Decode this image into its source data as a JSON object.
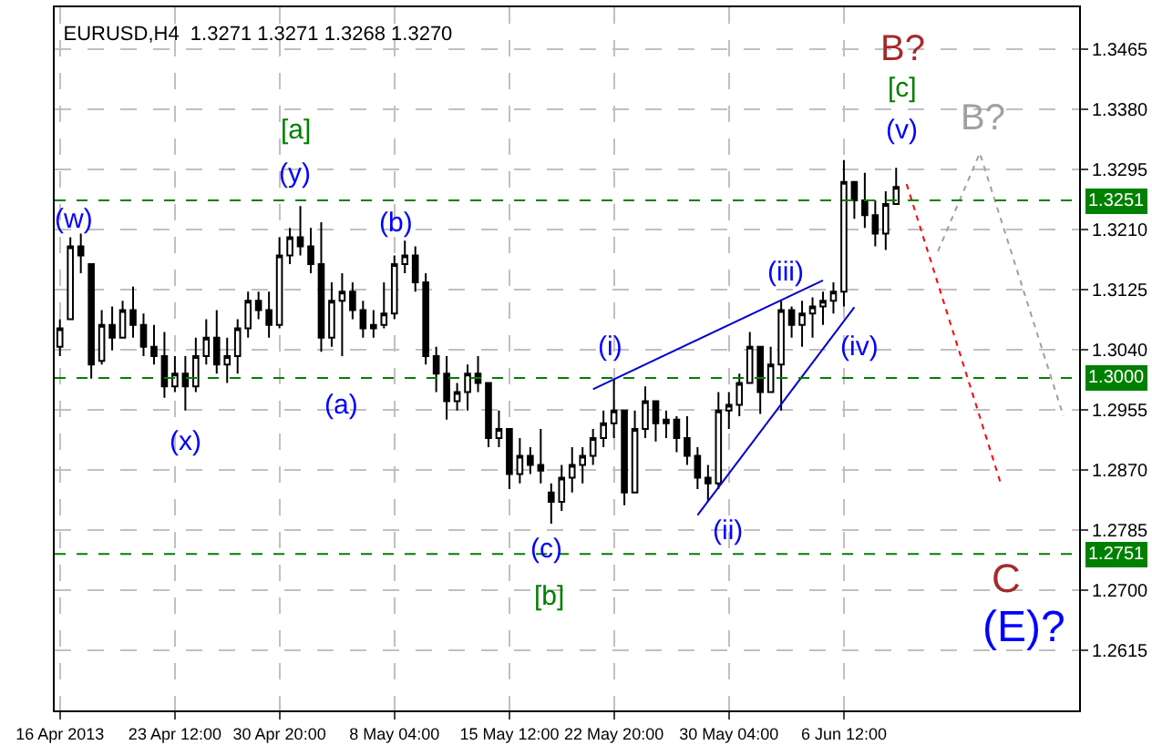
{
  "chart_data": {
    "type": "candlestick",
    "title": "EURUSD,H4  1.3271 1.3271 1.3268 1.3270",
    "color": "#000000",
    "categories": [
      "16 Apr 2013",
      null,
      null,
      null,
      null,
      null,
      null,
      null,
      null,
      null,
      null,
      "23 Apr 12:00",
      null,
      null,
      null,
      null,
      null,
      null,
      null,
      null,
      null,
      "30 Apr 20:00",
      null,
      null,
      null,
      null,
      null,
      null,
      null,
      null,
      null,
      null,
      "8 May 04:00",
      null,
      null,
      null,
      null,
      null,
      null,
      null,
      null,
      null,
      null,
      "15 May 12:00",
      null,
      null,
      null,
      null,
      null,
      null,
      null,
      null,
      null,
      "22 May 20:00",
      null,
      null,
      null,
      null,
      null,
      null,
      null,
      null,
      null,
      null,
      "30 May 04:00",
      null,
      null,
      null,
      null,
      null,
      null,
      null,
      null,
      null,
      null,
      "6 Jun 12:00",
      null,
      null,
      null,
      null,
      null,
      null,
      null,
      null,
      null,
      null,
      null,
      null,
      null,
      null,
      null,
      null,
      null,
      null,
      null,
      null,
      null,
      null
    ],
    "ohlc": [
      [
        1.3044,
        1.3083,
        1.3031,
        1.307
      ],
      [
        1.3083,
        1.3199,
        1.3083,
        1.3186
      ],
      [
        1.3186,
        1.3204,
        1.3148,
        1.3173
      ],
      [
        1.3161,
        1.3161,
        1.2999,
        1.3019
      ],
      [
        1.3024,
        1.3096,
        1.3019,
        1.3075
      ],
      [
        1.3075,
        1.3101,
        1.3039,
        1.3057
      ],
      [
        1.3057,
        1.3109,
        1.3057,
        1.3096
      ],
      [
        1.3096,
        1.3129,
        1.3057,
        1.3075
      ],
      [
        1.3075,
        1.3091,
        1.3031,
        1.3044
      ],
      [
        1.3044,
        1.3075,
        1.3019,
        1.3031
      ],
      [
        1.3031,
        1.3065,
        1.2972,
        1.2988
      ],
      [
        1.2988,
        1.3031,
        1.298,
        1.3006
      ],
      [
        1.3006,
        1.3031,
        1.2954,
        1.2988
      ],
      [
        1.2988,
        1.3057,
        1.298,
        1.3031
      ],
      [
        1.3031,
        1.3083,
        1.3019,
        1.3057
      ],
      [
        1.3057,
        1.3096,
        1.3006,
        1.3019
      ],
      [
        1.3019,
        1.3057,
        1.2993,
        1.3031
      ],
      [
        1.3031,
        1.3083,
        1.3006,
        1.307
      ],
      [
        1.307,
        1.3122,
        1.3057,
        1.3109
      ],
      [
        1.3109,
        1.3122,
        1.3083,
        1.3096
      ],
      [
        1.3096,
        1.3122,
        1.3057,
        1.3075
      ],
      [
        1.3075,
        1.3199,
        1.307,
        1.3173
      ],
      [
        1.3173,
        1.3212,
        1.3161,
        1.3199
      ],
      [
        1.3199,
        1.3243,
        1.3173,
        1.3186
      ],
      [
        1.3186,
        1.3212,
        1.3148,
        1.3161
      ],
      [
        1.3161,
        1.322,
        1.3037,
        1.3057
      ],
      [
        1.3057,
        1.3135,
        1.3044,
        1.3109
      ],
      [
        1.3109,
        1.3148,
        1.3031,
        1.3122
      ],
      [
        1.3122,
        1.3135,
        1.3083,
        1.3096
      ],
      [
        1.3096,
        1.3109,
        1.3057,
        1.307
      ],
      [
        1.307,
        1.3096,
        1.3057,
        1.3075
      ],
      [
        1.3075,
        1.3135,
        1.307,
        1.3091
      ],
      [
        1.3091,
        1.3173,
        1.3083,
        1.3161
      ],
      [
        1.3161,
        1.3194,
        1.3148,
        1.3173
      ],
      [
        1.3173,
        1.3186,
        1.3122,
        1.3135
      ],
      [
        1.3135,
        1.3148,
        1.3019,
        1.3031
      ],
      [
        1.3031,
        1.3044,
        1.298,
        1.3006
      ],
      [
        1.3006,
        1.3031,
        1.2941,
        1.2967
      ],
      [
        1.2967,
        1.2993,
        1.2954,
        1.298
      ],
      [
        1.298,
        1.3019,
        1.2954,
        1.3006
      ],
      [
        1.3006,
        1.3031,
        1.298,
        1.2993
      ],
      [
        1.2993,
        1.2993,
        1.2902,
        1.2915
      ],
      [
        1.2915,
        1.2954,
        1.2902,
        1.2928
      ],
      [
        1.2928,
        1.2928,
        1.2843,
        1.2864
      ],
      [
        1.2864,
        1.2915,
        1.2851,
        1.289
      ],
      [
        1.289,
        1.2902,
        1.2864,
        1.2877
      ],
      [
        1.2877,
        1.2928,
        1.2851,
        1.2869
      ],
      [
        1.2838,
        1.2851,
        1.2794,
        1.2825
      ],
      [
        1.2825,
        1.2877,
        1.2812,
        1.2859
      ],
      [
        1.2859,
        1.2902,
        1.2838,
        1.2877
      ],
      [
        1.2877,
        1.2902,
        1.2851,
        1.289
      ],
      [
        1.289,
        1.2928,
        1.2877,
        1.2915
      ],
      [
        1.2915,
        1.2954,
        1.2902,
        1.2936
      ],
      [
        1.2936,
        1.2999,
        1.2915,
        1.2954
      ],
      [
        1.2954,
        1.2954,
        1.282,
        1.2838
      ],
      [
        1.2838,
        1.2954,
        1.2838,
        1.2928
      ],
      [
        1.2928,
        1.2988,
        1.2915,
        1.2967
      ],
      [
        1.2967,
        1.2967,
        1.291,
        1.2936
      ],
      [
        1.2936,
        1.2954,
        1.2915,
        1.2941
      ],
      [
        1.2941,
        1.2946,
        1.2895,
        1.2915
      ],
      [
        1.2915,
        1.2946,
        1.2877,
        1.289
      ],
      [
        1.289,
        1.2902,
        1.2843,
        1.2859
      ],
      [
        1.2859,
        1.2877,
        1.2825,
        1.2851
      ],
      [
        1.2851,
        1.298,
        1.2843,
        1.2954
      ],
      [
        1.2954,
        1.298,
        1.2928,
        1.2962
      ],
      [
        1.2962,
        1.3006,
        1.2946,
        1.2993
      ],
      [
        1.2993,
        1.3065,
        1.2993,
        1.3044
      ],
      [
        1.3044,
        1.3044,
        1.2949,
        1.298
      ],
      [
        1.298,
        1.3044,
        1.298,
        1.3019
      ],
      [
        1.3019,
        1.3109,
        1.2954,
        1.3096
      ],
      [
        1.3096,
        1.3101,
        1.3057,
        1.3075
      ],
      [
        1.3075,
        1.3109,
        1.3044,
        1.3091
      ],
      [
        1.3091,
        1.3114,
        1.3057,
        1.3101
      ],
      [
        1.3101,
        1.3122,
        1.3075,
        1.3109
      ],
      [
        1.3109,
        1.3135,
        1.3091,
        1.3122
      ],
      [
        1.3122,
        1.3308,
        1.3101,
        1.3277
      ],
      [
        1.3277,
        1.3277,
        1.3225,
        1.3251
      ],
      [
        1.3251,
        1.329,
        1.3212,
        1.323
      ],
      [
        1.323,
        1.3251,
        1.3186,
        1.3204
      ],
      [
        1.3204,
        1.3264,
        1.3181,
        1.3246
      ],
      [
        1.3246,
        1.3297,
        1.3246,
        1.327
      ],
      null,
      null,
      null,
      null,
      null,
      null,
      null,
      null,
      null,
      null,
      null,
      null,
      null,
      null,
      null,
      null,
      null
    ],
    "series": [
      {
        "type": "line",
        "color": "#0000cc",
        "line_style": "solid",
        "values": [
          null,
          null,
          null,
          null,
          null,
          null,
          null,
          null,
          null,
          null,
          null,
          null,
          null,
          null,
          null,
          null,
          null,
          null,
          null,
          null,
          null,
          null,
          null,
          null,
          null,
          null,
          null,
          null,
          null,
          null,
          null,
          null,
          null,
          null,
          null,
          null,
          null,
          null,
          null,
          null,
          null,
          null,
          null,
          null,
          null,
          null,
          null,
          null,
          null,
          null,
          null,
          1.2984,
          null,
          null,
          null,
          null,
          null,
          null,
          null,
          null,
          null,
          null,
          null,
          null,
          null,
          null,
          null,
          null,
          null,
          null,
          null,
          null,
          null,
          1.3138,
          null,
          null,
          null,
          null,
          null,
          null,
          null,
          null,
          null,
          null,
          null,
          null,
          null,
          null,
          null,
          null,
          null,
          null,
          null,
          null,
          null,
          null,
          null,
          null
        ]
      },
      {
        "type": "line",
        "color": "#0000cc",
        "line_style": "solid",
        "values": [
          null,
          null,
          null,
          null,
          null,
          null,
          null,
          null,
          null,
          null,
          null,
          null,
          null,
          null,
          null,
          null,
          null,
          null,
          null,
          null,
          null,
          null,
          null,
          null,
          null,
          null,
          null,
          null,
          null,
          null,
          null,
          null,
          null,
          null,
          null,
          null,
          null,
          null,
          null,
          null,
          null,
          null,
          null,
          null,
          null,
          null,
          null,
          null,
          null,
          null,
          null,
          null,
          null,
          null,
          null,
          null,
          null,
          null,
          null,
          null,
          null,
          1.2806,
          null,
          null,
          null,
          null,
          null,
          null,
          null,
          null,
          null,
          null,
          null,
          null,
          null,
          null,
          1.31,
          null,
          null,
          null,
          null,
          null,
          null,
          null,
          null,
          null,
          null,
          null,
          null,
          null,
          null,
          null,
          null,
          null,
          null,
          null,
          null,
          null
        ]
      },
      {
        "type": "line",
        "color": "#ff0000",
        "line_style": "dotted",
        "values": [
          null,
          null,
          null,
          null,
          null,
          null,
          null,
          null,
          null,
          null,
          null,
          null,
          null,
          null,
          null,
          null,
          null,
          null,
          null,
          null,
          null,
          null,
          null,
          null,
          null,
          null,
          null,
          null,
          null,
          null,
          null,
          null,
          null,
          null,
          null,
          null,
          null,
          null,
          null,
          null,
          null,
          null,
          null,
          null,
          null,
          null,
          null,
          null,
          null,
          null,
          null,
          null,
          null,
          null,
          null,
          null,
          null,
          null,
          null,
          null,
          null,
          null,
          null,
          null,
          null,
          null,
          null,
          null,
          null,
          null,
          null,
          null,
          null,
          null,
          null,
          null,
          null,
          null,
          null,
          null,
          null,
          1.3274,
          null,
          null,
          null,
          null,
          null,
          null,
          null,
          null,
          1.2851,
          null,
          null,
          null,
          null,
          null,
          null,
          null
        ]
      },
      {
        "type": "line",
        "color": "#a0a0a0",
        "line_style": "dotted",
        "values": [
          null,
          null,
          null,
          null,
          null,
          null,
          null,
          null,
          null,
          null,
          null,
          null,
          null,
          null,
          null,
          null,
          null,
          null,
          null,
          null,
          null,
          null,
          null,
          null,
          null,
          null,
          null,
          null,
          null,
          null,
          null,
          null,
          null,
          null,
          null,
          null,
          null,
          null,
          null,
          null,
          null,
          null,
          null,
          null,
          null,
          null,
          null,
          null,
          null,
          null,
          null,
          null,
          null,
          null,
          null,
          null,
          null,
          null,
          null,
          null,
          null,
          null,
          null,
          null,
          null,
          null,
          null,
          null,
          null,
          null,
          null,
          null,
          null,
          null,
          null,
          null,
          null,
          null,
          null,
          null,
          null,
          null,
          null,
          null,
          1.3179,
          null,
          null,
          null,
          1.3318,
          null,
          null,
          null,
          null,
          null,
          null,
          null,
          1.2946,
          null
        ]
      }
    ],
    "ylim": [
      1.253,
      1.3524
    ],
    "yticks": [
      1.2615,
      {
        "value": 1.27,
        "label": "1.2700"
      },
      1.2785,
      {
        "value": 1.287,
        "label": "1.2870"
      },
      1.2955,
      {
        "value": 1.304,
        "label": "1.3040"
      },
      1.3125,
      {
        "value": 1.321,
        "label": "1.3210"
      },
      1.3295,
      {
        "value": 1.338,
        "label": "1.3380"
      },
      1.3465
    ],
    "grid": true,
    "ref_lines": [
      {
        "axis": "y",
        "value": 1.3251,
        "label": "1.3251",
        "color": "#008000",
        "line_style": "dashed"
      },
      {
        "axis": "y",
        "value": 1.3,
        "label": "1.3000",
        "color": "#008000",
        "line_style": "dashed"
      },
      {
        "axis": "y",
        "value": 1.2751,
        "label": "1.2751",
        "color": "#008000",
        "line_style": "dashed"
      }
    ],
    "annotations": [
      "(w)",
      "[a]",
      "(y)",
      "(x)",
      "(a)",
      "(b)",
      "(i)",
      "(c)",
      "[b]",
      "(ii)",
      "(iii)",
      "(iv)",
      "(v)",
      "[c]",
      "B?",
      "B?",
      "C",
      "(E)?"
    ]
  }
}
